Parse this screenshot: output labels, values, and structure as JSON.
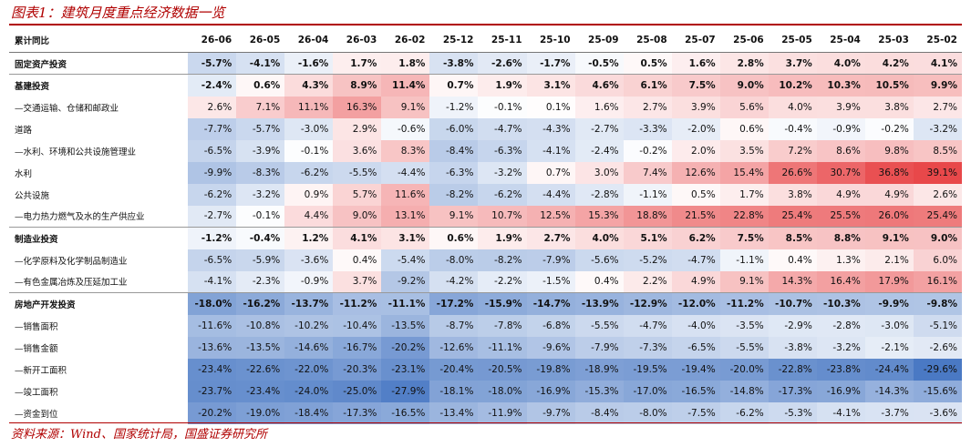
{
  "title": "图表1：建筑月度重点经济数据一览",
  "source": "资料来源：Wind、国家统计局，国盛证券研究所",
  "table": {
    "header_label": "累计同比",
    "columns": [
      "26-06",
      "26-05",
      "26-04",
      "26-03",
      "26-02",
      "25-12",
      "25-11",
      "25-10",
      "25-09",
      "25-08",
      "25-07",
      "25-06",
      "25-05",
      "25-04",
      "25-03",
      "25-02"
    ],
    "rows": [
      {
        "label": "固定资产投资",
        "bold": true,
        "values": [
          -5.7,
          -4.1,
          -1.6,
          1.7,
          1.8,
          -3.8,
          -2.6,
          -1.7,
          -0.5,
          0.5,
          1.6,
          2.8,
          3.7,
          4.0,
          4.2,
          4.1
        ]
      },
      {
        "label": "基建投资",
        "bold": true,
        "values": [
          -2.4,
          0.6,
          4.3,
          8.9,
          11.4,
          0.7,
          1.9,
          3.1,
          4.6,
          6.1,
          7.5,
          9.0,
          10.2,
          10.3,
          10.5,
          9.9
        ]
      },
      {
        "label": "—交通运输、仓储和邮政业",
        "bold": false,
        "values": [
          2.6,
          7.1,
          11.1,
          16.3,
          9.1,
          -1.2,
          -0.1,
          0.1,
          1.6,
          2.7,
          3.9,
          5.6,
          4.0,
          3.9,
          3.8,
          2.7
        ]
      },
      {
        "label": "道路",
        "bold": false,
        "values": [
          -7.7,
          -5.7,
          -3.0,
          2.9,
          -0.6,
          -6.0,
          -4.7,
          -4.3,
          -2.7,
          -3.3,
          -2.0,
          0.6,
          -0.4,
          -0.9,
          -0.2,
          -3.2
        ]
      },
      {
        "label": "—水利、环境和公共设施管理业",
        "bold": false,
        "values": [
          -6.5,
          -3.9,
          -0.1,
          3.6,
          8.3,
          -8.4,
          -6.3,
          -4.1,
          -2.4,
          -0.2,
          2.0,
          3.5,
          7.2,
          8.6,
          9.8,
          8.5
        ]
      },
      {
        "label": "水利",
        "bold": false,
        "values": [
          -9.9,
          -8.3,
          -6.2,
          -5.5,
          -4.4,
          -6.3,
          -3.2,
          0.7,
          3.0,
          7.4,
          12.6,
          15.4,
          26.6,
          30.7,
          36.8,
          39.1
        ]
      },
      {
        "label": "公共设施",
        "bold": false,
        "values": [
          -6.2,
          -3.2,
          0.9,
          5.7,
          11.6,
          -8.2,
          -6.2,
          -4.4,
          -2.8,
          -1.1,
          0.5,
          1.7,
          3.8,
          4.9,
          4.9,
          2.6
        ]
      },
      {
        "label": "—电力热力燃气及水的生产供应业",
        "bold": false,
        "values": [
          -2.7,
          -0.1,
          4.4,
          9.0,
          13.1,
          9.1,
          10.7,
          12.5,
          15.3,
          18.8,
          21.5,
          22.8,
          25.4,
          25.5,
          26.0,
          25.4
        ]
      },
      {
        "label": "制造业投资",
        "bold": true,
        "values": [
          -1.2,
          -0.4,
          1.2,
          4.1,
          3.1,
          0.6,
          1.9,
          2.7,
          4.0,
          5.1,
          6.2,
          7.5,
          8.5,
          8.8,
          9.1,
          9.0
        ]
      },
      {
        "label": "—化学原料及化学制品制造业",
        "bold": false,
        "values": [
          -6.5,
          -5.9,
          -3.6,
          0.4,
          -5.4,
          -8.0,
          -8.2,
          -7.9,
          -5.6,
          -5.2,
          -4.7,
          -1.1,
          0.4,
          1.3,
          2.1,
          6.0
        ]
      },
      {
        "label": "—有色金属冶炼及压延加工业",
        "bold": false,
        "values": [
          -4.1,
          -2.3,
          -0.9,
          3.7,
          -9.2,
          -4.2,
          -2.2,
          -1.5,
          0.4,
          2.2,
          4.9,
          9.1,
          14.3,
          16.4,
          17.9,
          16.1
        ]
      },
      {
        "label": "房地产开发投资",
        "bold": true,
        "values": [
          -18.0,
          -16.2,
          -13.7,
          -11.2,
          -11.1,
          -17.2,
          -15.9,
          -14.7,
          -13.9,
          -12.9,
          -12.0,
          -11.2,
          -10.7,
          -10.3,
          -9.9,
          -9.8
        ]
      },
      {
        "label": "—销售面积",
        "bold": false,
        "values": [
          -11.6,
          -10.8,
          -10.2,
          -10.4,
          -13.5,
          -8.7,
          -7.8,
          -6.8,
          -5.5,
          -4.7,
          -4.0,
          -3.5,
          -2.9,
          -2.8,
          -3.0,
          -5.1
        ]
      },
      {
        "label": "—销售金额",
        "bold": false,
        "values": [
          -13.6,
          -13.5,
          -14.6,
          -16.7,
          -20.2,
          -12.6,
          -11.1,
          -9.6,
          -7.9,
          -7.3,
          -6.5,
          -5.5,
          -3.8,
          -3.2,
          -2.1,
          -2.6
        ]
      },
      {
        "label": "—新开工面积",
        "bold": false,
        "values": [
          -23.4,
          -22.6,
          -22.0,
          -20.3,
          -23.1,
          -20.4,
          -20.5,
          -19.8,
          -18.9,
          -19.5,
          -19.4,
          -20.0,
          -22.8,
          -23.8,
          -24.4,
          -29.6
        ]
      },
      {
        "label": "—竣工面积",
        "bold": false,
        "values": [
          -23.7,
          -23.4,
          -24.0,
          -25.0,
          -27.9,
          -18.1,
          -18.0,
          -16.9,
          -15.3,
          -17.0,
          -16.5,
          -14.8,
          -17.3,
          -16.9,
          -14.3,
          -15.6
        ]
      },
      {
        "label": "—资金到位",
        "bold": false,
        "values": [
          -20.2,
          -19.0,
          -18.4,
          -17.3,
          -16.5,
          -13.4,
          -11.9,
          -9.7,
          -8.4,
          -8.0,
          -7.5,
          -6.2,
          -5.3,
          -4.1,
          -3.7,
          -3.6
        ]
      }
    ]
  },
  "colors": {
    "accent": "#b00000",
    "positive_max": "#e8484a",
    "negative_max": "#4a79c4"
  }
}
